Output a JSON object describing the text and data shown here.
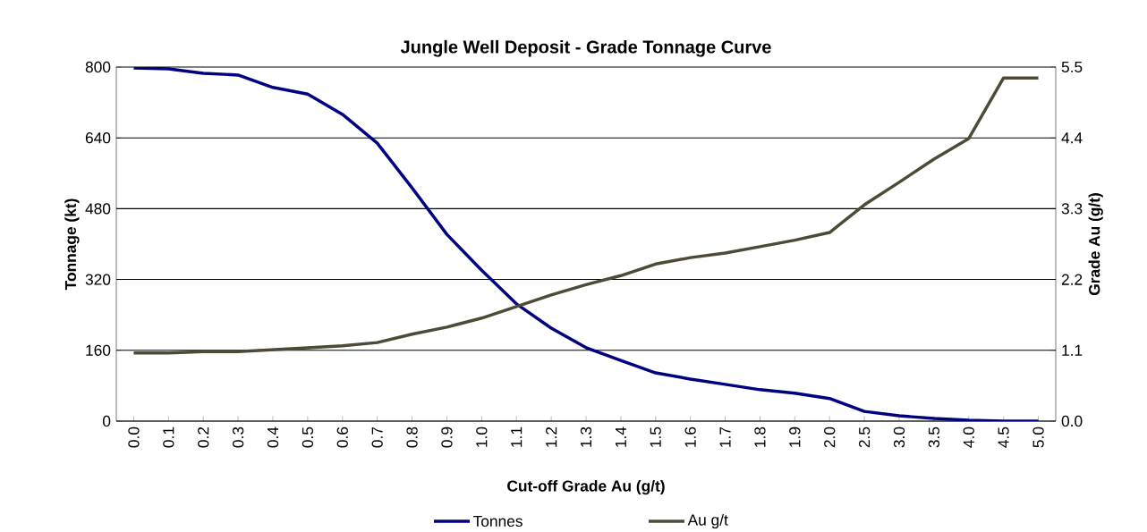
{
  "chart_data": {
    "type": "line",
    "title": "Jungle Well Deposit - Grade Tonnage Curve",
    "xlabel": "Cut-off Grade Au (g/t)",
    "ylabel": "Tonnage (kt)",
    "y2label": "Grade Au (g/t)",
    "categories": [
      "0.0",
      "0.1",
      "0.2",
      "0.3",
      "0.4",
      "0.5",
      "0.6",
      "0.7",
      "0.8",
      "0.9",
      "1.0",
      "1.1",
      "1.2",
      "1.3",
      "1.4",
      "1.5",
      "1.6",
      "1.7",
      "1.8",
      "1.9",
      "2.0",
      "2.5",
      "3.0",
      "3.5",
      "4.0",
      "4.5",
      "5.0"
    ],
    "series": [
      {
        "name": "Tonnes",
        "color": "#000080",
        "axis": "y",
        "values": [
          798,
          796,
          786,
          782,
          754,
          739,
          693,
          628,
          527,
          422,
          341,
          265,
          210,
          166,
          137,
          109,
          95,
          83,
          71,
          63,
          51,
          22,
          12,
          6,
          2,
          0,
          0
        ]
      },
      {
        "name": "Au g/t",
        "color": "#4d4a38",
        "axis": "y2",
        "values": [
          1.06,
          1.06,
          1.08,
          1.08,
          1.11,
          1.14,
          1.17,
          1.22,
          1.35,
          1.46,
          1.6,
          1.78,
          1.96,
          2.12,
          2.26,
          2.44,
          2.54,
          2.61,
          2.71,
          2.81,
          2.93,
          3.36,
          3.71,
          4.07,
          4.39,
          5.33,
          5.33
        ]
      }
    ],
    "ylim": [
      0,
      800
    ],
    "yticks": [
      0,
      160,
      320,
      480,
      640,
      800
    ],
    "y2lim": [
      0,
      5.5
    ],
    "y2ticks": [
      {
        "value": 0,
        "label": "0.0"
      },
      1.1,
      2.2,
      3.3,
      4.4,
      5.5
    ],
    "grid": "y",
    "legend": "bottom"
  }
}
